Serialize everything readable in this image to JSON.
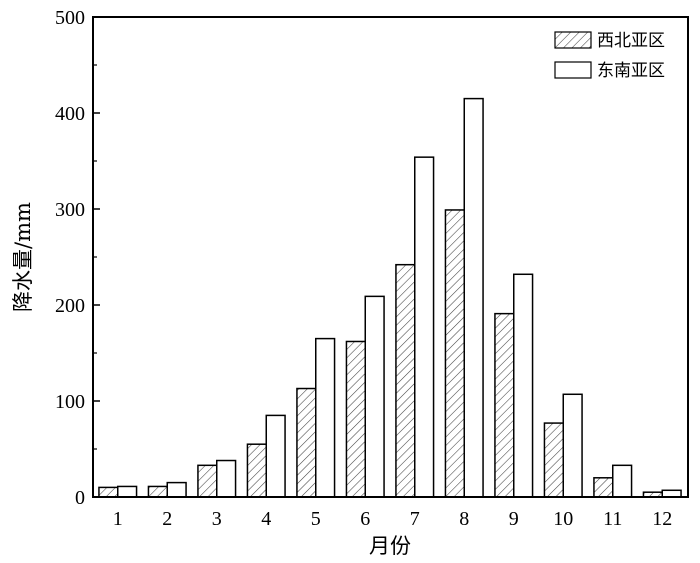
{
  "chart_data": {
    "type": "bar",
    "title": "",
    "xlabel": "月份",
    "ylabel": "降水量/mm",
    "categories": [
      "1",
      "2",
      "3",
      "4",
      "5",
      "6",
      "7",
      "8",
      "9",
      "10",
      "11",
      "12"
    ],
    "ylim": [
      0,
      500
    ],
    "yticks": [
      "0",
      "100",
      "200",
      "300",
      "400",
      "500"
    ],
    "series": [
      {
        "name": "西北亚区",
        "pattern": "hatched",
        "values": [
          10,
          11,
          33,
          55,
          113,
          162,
          242,
          299,
          191,
          77,
          20,
          5
        ]
      },
      {
        "name": "东南亚区",
        "pattern": "plain",
        "values": [
          11,
          15,
          38,
          85,
          165,
          209,
          354,
          415,
          232,
          107,
          33,
          7
        ]
      }
    ],
    "legend_position": "top-right",
    "grid": false
  }
}
